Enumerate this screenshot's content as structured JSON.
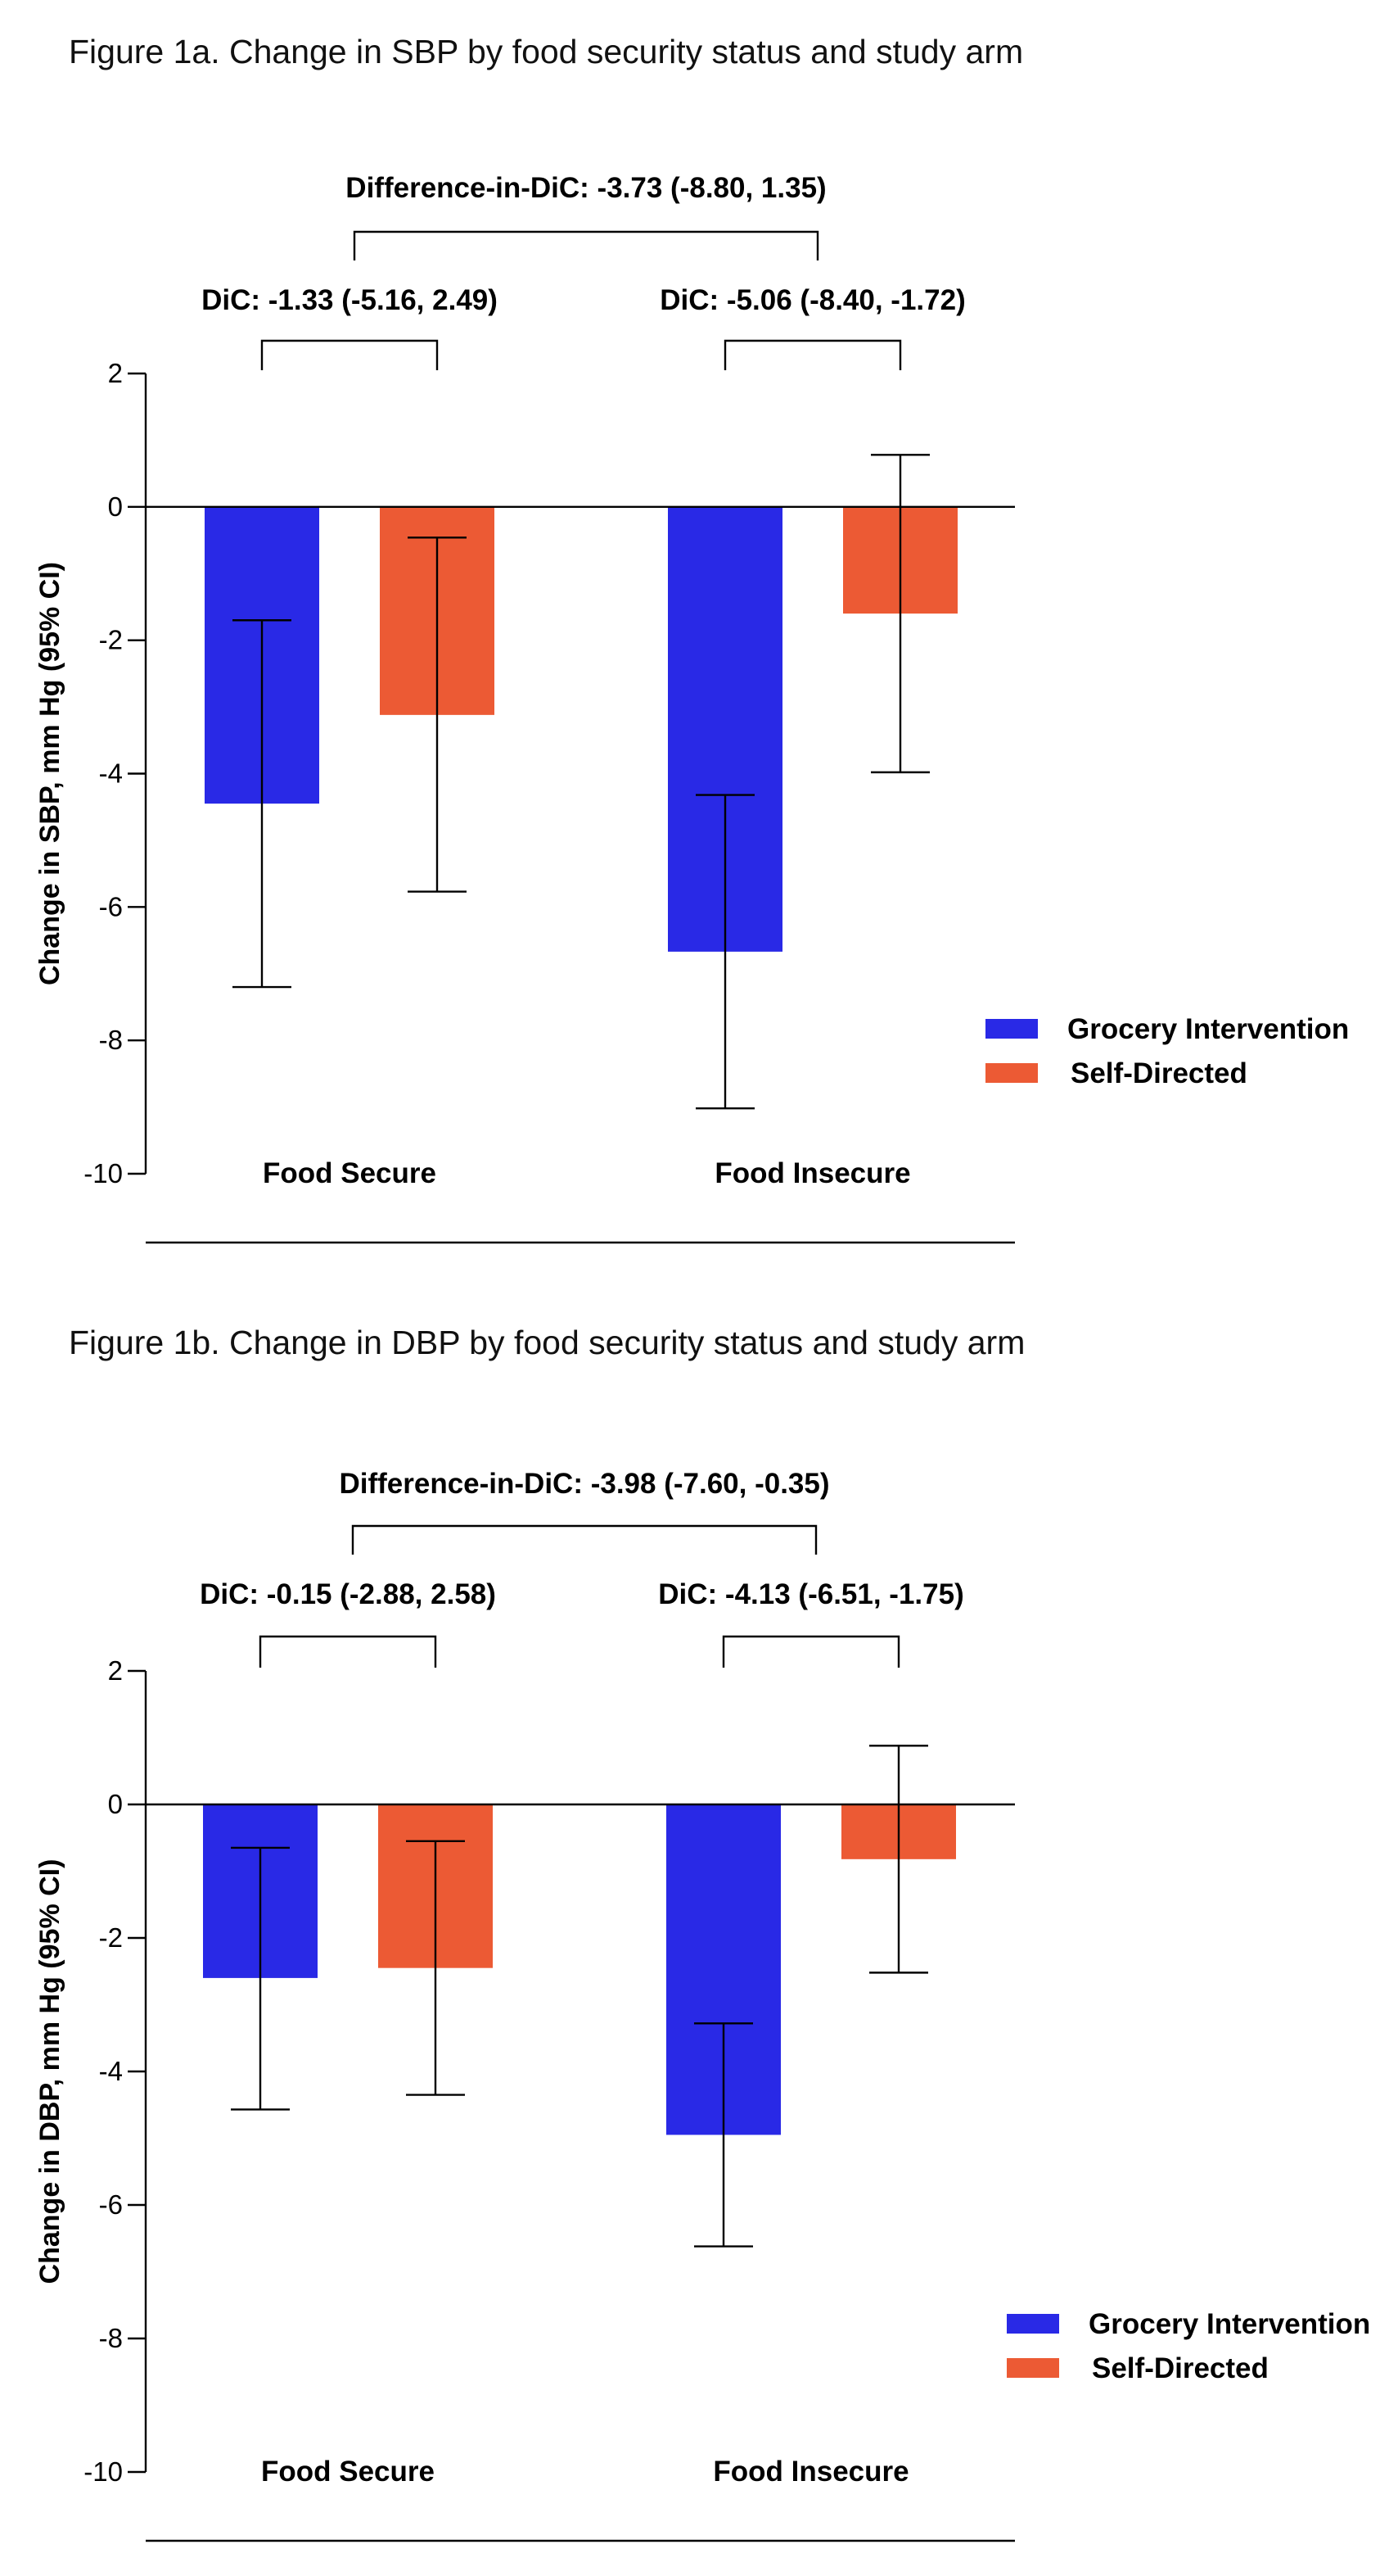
{
  "chart_data": [
    {
      "type": "bar",
      "title": "Figure 1a. Change in SBP by food security status and study arm",
      "ylabel": "Change in SBP, mm Hg (95% CI)",
      "xlabel": "",
      "ylim": [
        -10,
        2
      ],
      "yticks": [
        "2",
        "0",
        "-2",
        "-4",
        "-6",
        "-8",
        "-10"
      ],
      "categories": [
        "Food Secure",
        "Food Insecure"
      ],
      "series": [
        {
          "name": "Grocery Intervention",
          "color": "#2929e6",
          "values": [
            -4.45,
            -6.67
          ],
          "ci_low": [
            -7.2,
            -9.02
          ],
          "ci_high": [
            -1.7,
            -4.32
          ]
        },
        {
          "name": "Self-Directed",
          "color": "#ec5a34",
          "values": [
            -3.12,
            -1.6
          ],
          "ci_low": [
            -5.77,
            -3.98
          ],
          "ci_high": [
            -0.46,
            0.78
          ]
        }
      ],
      "annotations": {
        "dic": [
          "DiC: -1.33 (-5.16, 2.49)",
          "DiC: -5.06 (-8.40, -1.72)"
        ],
        "did": "Difference-in-DiC: -3.73 (-8.80, 1.35)"
      },
      "legend_position": "right"
    },
    {
      "type": "bar",
      "title": "Figure 1b. Change in DBP by food security status and study arm",
      "ylabel": "Change in DBP, mm Hg (95% CI)",
      "xlabel": "",
      "ylim": [
        -10,
        2
      ],
      "yticks": [
        "2",
        "0",
        "-2",
        "-4",
        "-6",
        "-8",
        "-10"
      ],
      "categories": [
        "Food Secure",
        "Food Insecure"
      ],
      "series": [
        {
          "name": "Grocery Intervention",
          "color": "#2929e6",
          "values": [
            -2.6,
            -4.95
          ],
          "ci_low": [
            -4.57,
            -6.62
          ],
          "ci_high": [
            -0.65,
            -3.28
          ]
        },
        {
          "name": "Self-Directed",
          "color": "#ec5a34",
          "values": [
            -2.45,
            -0.82
          ],
          "ci_low": [
            -4.35,
            -2.52
          ],
          "ci_high": [
            -0.55,
            0.88
          ]
        }
      ],
      "annotations": {
        "dic": [
          "DiC: -0.15 (-2.88, 2.58)",
          "DiC: -4.13 (-6.51, -1.75)"
        ],
        "did": "Difference-in-DiC: -3.98 (-7.60, -0.35)"
      },
      "legend_position": "right"
    }
  ]
}
